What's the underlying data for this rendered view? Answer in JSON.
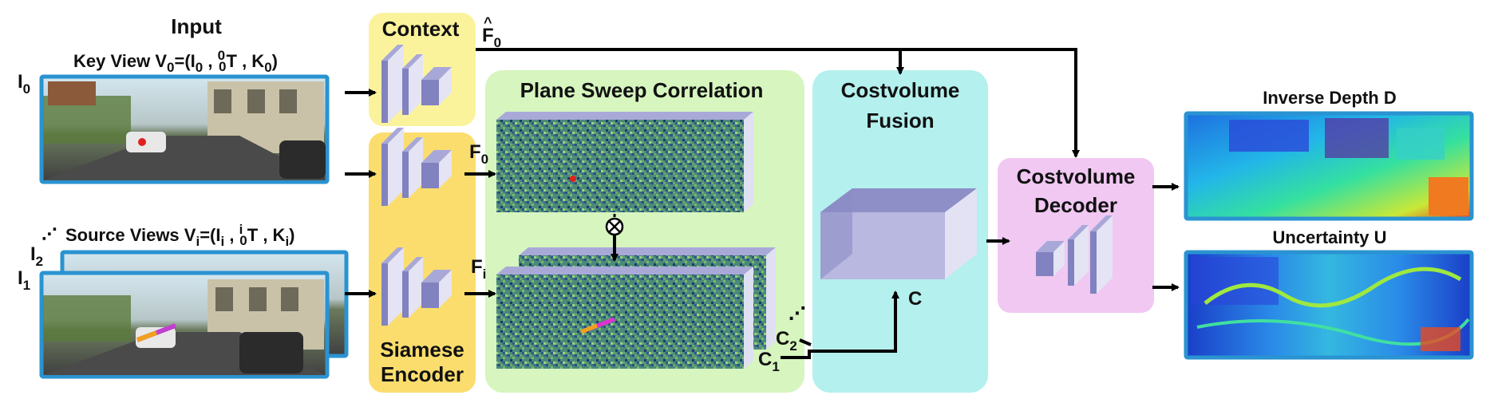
{
  "input": {
    "heading": "Input",
    "key_view": {
      "prefix": "Key View V",
      "sub": "0",
      "mid": "=(I",
      "sub2": "0",
      "t": " , ",
      "tsup": "0",
      "tsub": "0",
      "tail": "T , K",
      "ksub": "0",
      "close": ")"
    },
    "source_views": {
      "prefix": "Source Views V",
      "sub": "i",
      "mid": "=(I",
      "sub2": "i",
      "t": " , ",
      "tsup": "i",
      "tsub": "0",
      "tail": "T , K",
      "ksub": "i",
      "close": ")"
    },
    "i0": {
      "base": "I",
      "sub": "0"
    },
    "i1": {
      "base": "I",
      "sub": "1"
    },
    "i2": {
      "base": "I",
      "sub": "2"
    }
  },
  "context": {
    "label": "Context",
    "feature": {
      "hat": "^",
      "base": "F",
      "sub": "0"
    }
  },
  "encoder": {
    "line1": "Siamese",
    "line2": "Encoder",
    "f0": {
      "base": "F",
      "sub": "0"
    },
    "fi": {
      "base": "F",
      "sub": "i"
    }
  },
  "plane_sweep": {
    "label": "Plane Sweep Correlation",
    "c1": {
      "base": "C",
      "sub": "1"
    },
    "c2": {
      "base": "C",
      "sub": "2"
    }
  },
  "fusion": {
    "line1": "Costvolume",
    "line2": "Fusion",
    "c": "C"
  },
  "decoder": {
    "line1": "Costvolume",
    "line2": "Decoder"
  },
  "outputs": {
    "depth": "Inverse Depth D",
    "uncertainty": "Uncertainty U"
  },
  "colors": {
    "context": "#fbf39b",
    "encoder": "#fbdd6e",
    "plane_sweep": "#d6f5bf",
    "fusion": "#b3f0ee",
    "decoder": "#f0c8f2",
    "frame": "#2a93d1",
    "block": "#8282c0"
  }
}
